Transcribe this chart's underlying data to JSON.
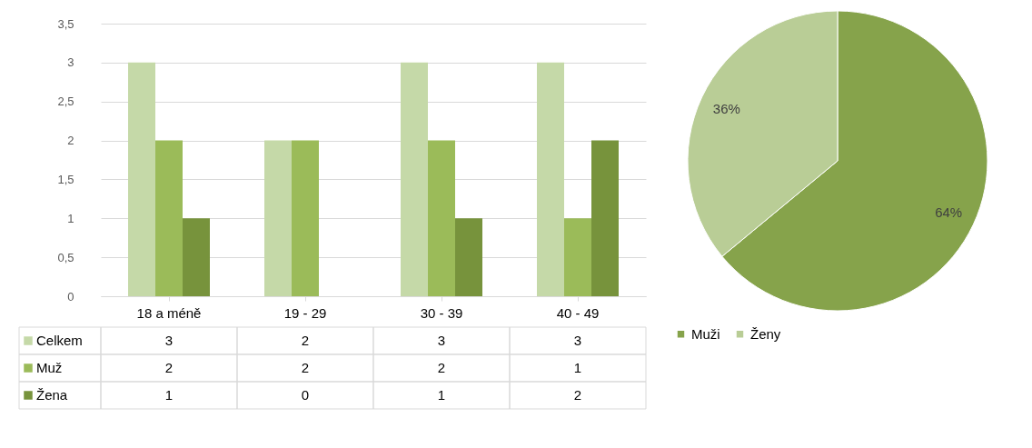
{
  "chart_data": [
    {
      "type": "bar",
      "categories": [
        "18 a méně",
        "19 - 29",
        "30 - 39",
        "40 - 49"
      ],
      "series": [
        {
          "name": "Celkem",
          "color": "#c5d9a8",
          "values": [
            3,
            2,
            3,
            3
          ]
        },
        {
          "name": "Muž",
          "color": "#9bbb59",
          "values": [
            2,
            2,
            2,
            1
          ]
        },
        {
          "name": "Žena",
          "color": "#77933c",
          "values": [
            1,
            0,
            1,
            2
          ]
        }
      ],
      "ylim": [
        0,
        3.5
      ],
      "yticks": [
        0,
        {
          "value": 0.5,
          "label": "0,5"
        },
        1,
        {
          "value": 1.5,
          "label": "1,5"
        },
        2,
        {
          "value": 2.5,
          "label": "2,5"
        },
        3,
        {
          "value": 3.5,
          "label": "3,5"
        }
      ],
      "grid": "y",
      "legend": "bottom",
      "data_labels": true
    },
    {
      "type": "pie",
      "categories": [
        "Muži",
        "Ženy"
      ],
      "values": [
        64,
        36
      ],
      "colors": [
        "#86a34b",
        "#b9cd96"
      ],
      "value_labels": [
        "64%",
        "36%"
      ],
      "legend": "bottom"
    }
  ]
}
